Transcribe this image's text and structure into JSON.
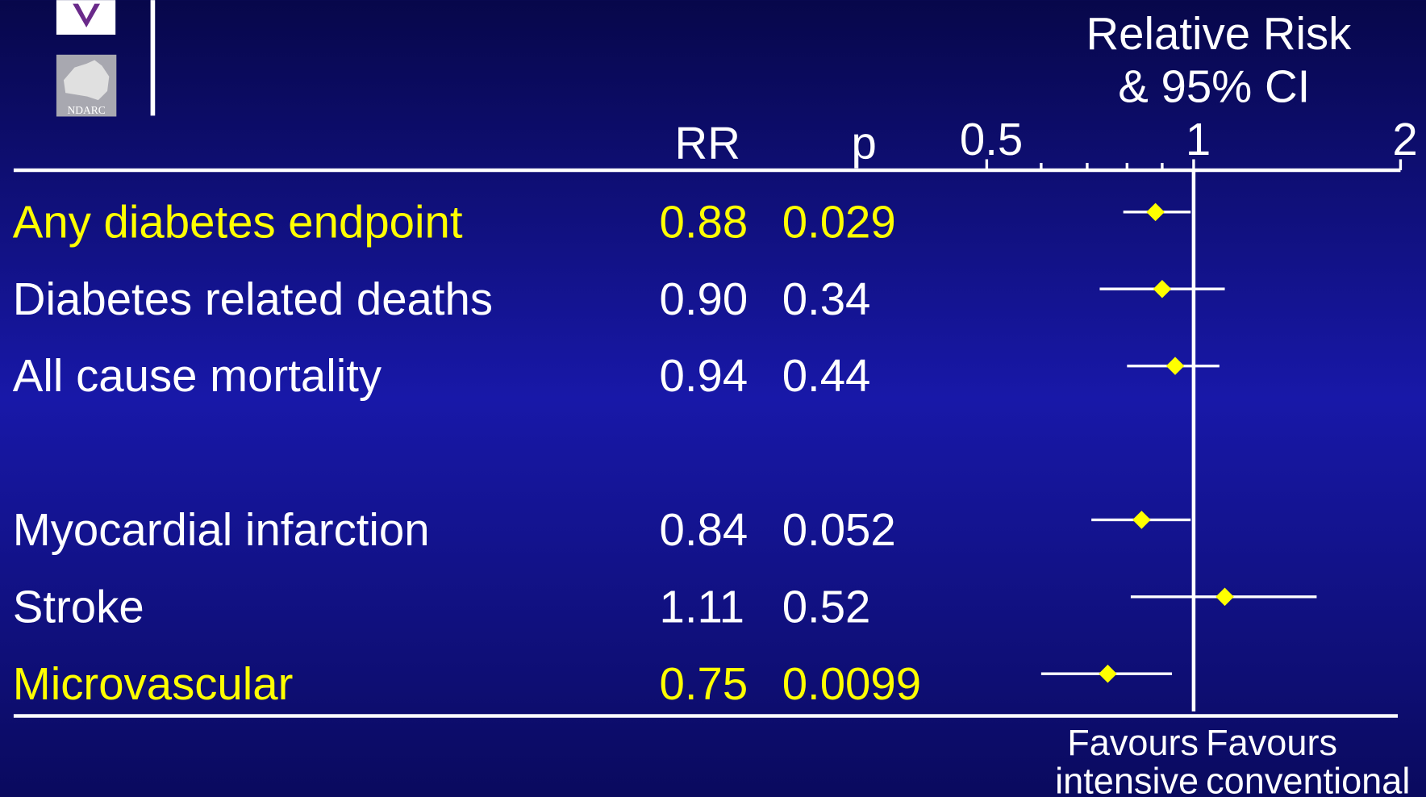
{
  "logo": {
    "text": "NDARC"
  },
  "chart_data": {
    "type": "forest",
    "title": "Relative Risk",
    "subtitle": "& 95% CI",
    "rr_header": "RR",
    "p_header": "p",
    "categories": [
      "Any diabetes endpoint",
      "Diabetes related deaths",
      "All cause mortality",
      "Myocardial infarction",
      "Stroke",
      "Microvascular"
    ],
    "values": [
      0.88,
      0.9,
      0.94,
      0.84,
      1.11,
      0.75
    ],
    "value_labels": [
      "0.88",
      "0.90",
      "0.94",
      "0.84",
      "1.11",
      "0.75"
    ],
    "ci_low": [
      0.79,
      0.73,
      0.8,
      0.71,
      0.81,
      0.6
    ],
    "ci_high": [
      0.99,
      1.11,
      1.09,
      0.99,
      1.51,
      0.93
    ],
    "p_values": [
      0.029,
      0.34,
      0.44,
      0.052,
      0.52,
      0.0099
    ],
    "row_colors": [
      "#ffff00",
      "#ffffff",
      "#ffffff",
      "#ffffff",
      "#ffffff",
      "#ffff00"
    ],
    "marker_color": "#ffff00",
    "log_scale": true,
    "xlim": [
      0.5,
      2
    ],
    "xticks": [
      0.5,
      1,
      2
    ],
    "xminor": [
      0.6,
      0.7,
      0.8,
      0.9
    ],
    "left_label": [
      "Favours",
      "intensive"
    ],
    "right_label": [
      "Favours",
      "conventional"
    ]
  }
}
